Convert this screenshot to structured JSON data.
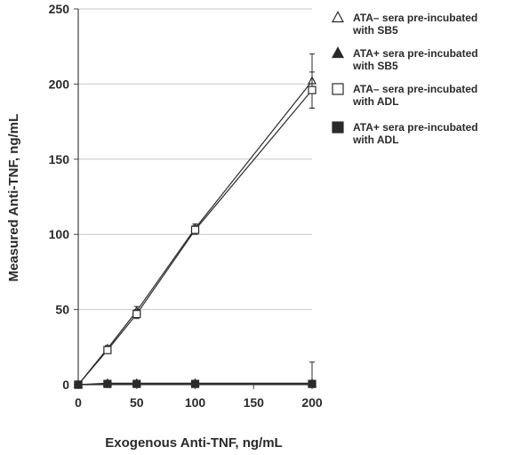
{
  "chart_data": {
    "type": "scatter",
    "xlabel": "Exogenous Anti-TNF, ng/mL",
    "ylabel": "Measured Anti-TNF, ng/mL",
    "xlim": [
      0,
      200
    ],
    "ylim": [
      0,
      250
    ],
    "x_ticks": [
      0,
      50,
      100,
      150,
      200
    ],
    "y_ticks": [
      0,
      50,
      100,
      150,
      200,
      250
    ],
    "grid": "horizontal",
    "legend_position": "right",
    "series": [
      {
        "name": [
          "ATA– sera pre-incubated",
          "with SB5"
        ],
        "marker": "open-triangle",
        "x": [
          0,
          25,
          50,
          100,
          200
        ],
        "y": [
          0,
          24,
          49,
          104,
          202
        ],
        "err": [
          0,
          2,
          3,
          3,
          18
        ],
        "color": "#2a2a2a"
      },
      {
        "name": [
          "ATA+ sera pre-incubated",
          "with SB5"
        ],
        "marker": "filled-triangle",
        "x": [
          0,
          25,
          50,
          100,
          200
        ],
        "y": [
          0,
          1,
          1,
          1,
          1
        ],
        "err": [
          0,
          0,
          0,
          0,
          14
        ],
        "color": "#2a2a2a"
      },
      {
        "name": [
          "ATA– sera pre-incubated",
          "with ADL"
        ],
        "marker": "open-square",
        "x": [
          0,
          25,
          50,
          100,
          200
        ],
        "y": [
          0,
          23,
          47,
          103,
          196
        ],
        "err": [
          0,
          2,
          3,
          3,
          12
        ],
        "color": "#2a2a2a"
      },
      {
        "name": [
          "ATA+ sera pre-incubated",
          "with ADL"
        ],
        "marker": "filled-square",
        "x": [
          0,
          25,
          50,
          100,
          200
        ],
        "y": [
          0,
          0.5,
          0.5,
          0.5,
          0.5
        ],
        "err": [
          0,
          0,
          0,
          0,
          0
        ],
        "color": "#2a2a2a"
      }
    ]
  }
}
